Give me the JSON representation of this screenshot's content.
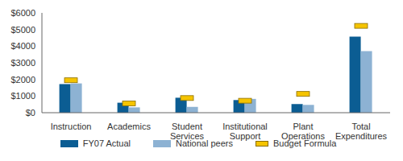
{
  "chart_data": {
    "type": "bar",
    "categories": [
      "Instruction",
      "Academics",
      "Student Services",
      "Institutional Support",
      "Plant Operations",
      "Total Expenditures"
    ],
    "series": [
      {
        "name": "FY07 Actual",
        "type": "bar",
        "color": "#0b5d93",
        "values": [
          1720,
          600,
          900,
          760,
          520,
          4570
        ]
      },
      {
        "name": "National peers",
        "type": "bar",
        "color": "#8db2d3",
        "values": [
          1760,
          320,
          350,
          830,
          470,
          3700
        ]
      },
      {
        "name": "Budget Formula",
        "type": "scatter",
        "marker": "dash",
        "color": "#f5c400",
        "values": [
          1950,
          560,
          880,
          720,
          1130,
          5220
        ]
      }
    ],
    "ylim": [
      0,
      6000
    ],
    "yticks": [
      {
        "value": 0,
        "label": "$0"
      },
      {
        "value": 1000,
        "label": "$1000"
      },
      {
        "value": 2000,
        "label": "$2000"
      },
      {
        "value": 3000,
        "label": "$3000"
      },
      {
        "value": 4000,
        "label": "$4000"
      },
      {
        "value": 5000,
        "label": "$5000"
      },
      {
        "value": 6000,
        "label": "$6000"
      }
    ],
    "grid": false,
    "legend": "bottom"
  }
}
